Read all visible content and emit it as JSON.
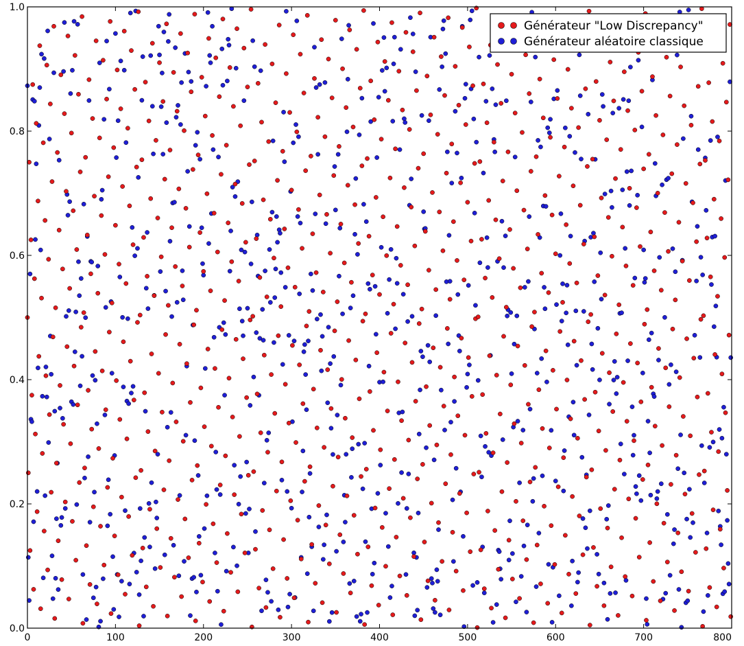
{
  "chart_data": {
    "type": "scatter",
    "title": "",
    "xlabel": "",
    "ylabel": "",
    "xlim": [
      0,
      800
    ],
    "ylim": [
      0.0,
      1.0
    ],
    "x_ticks": [
      0,
      100,
      200,
      300,
      400,
      500,
      600,
      700,
      800
    ],
    "y_ticks": [
      0.0,
      0.2,
      0.4,
      0.6,
      0.8,
      1.0
    ],
    "x_tick_labels": [
      "0",
      "100",
      "200",
      "300",
      "400",
      "500",
      "600",
      "700",
      "800"
    ],
    "y_tick_labels": [
      "0.0",
      "0.2",
      "0.4",
      "0.6",
      "0.8",
      "1.0"
    ],
    "grid": false,
    "legend_position": "top-right",
    "points_per_series": 800,
    "series": [
      {
        "name": "Générateur \"Low Discrepancy\"",
        "color": "#e41a1c",
        "marker": "circle",
        "generator": "halton-base-2",
        "x": "index 0..799",
        "y": "van der Corput sequence in base 2"
      },
      {
        "name": "Générateur aléatoire classique",
        "color": "#1f1fd6",
        "marker": "circle",
        "generator": "uniform-random",
        "x": "index 0..799",
        "y": "uniform random in [0, 1)"
      }
    ]
  }
}
